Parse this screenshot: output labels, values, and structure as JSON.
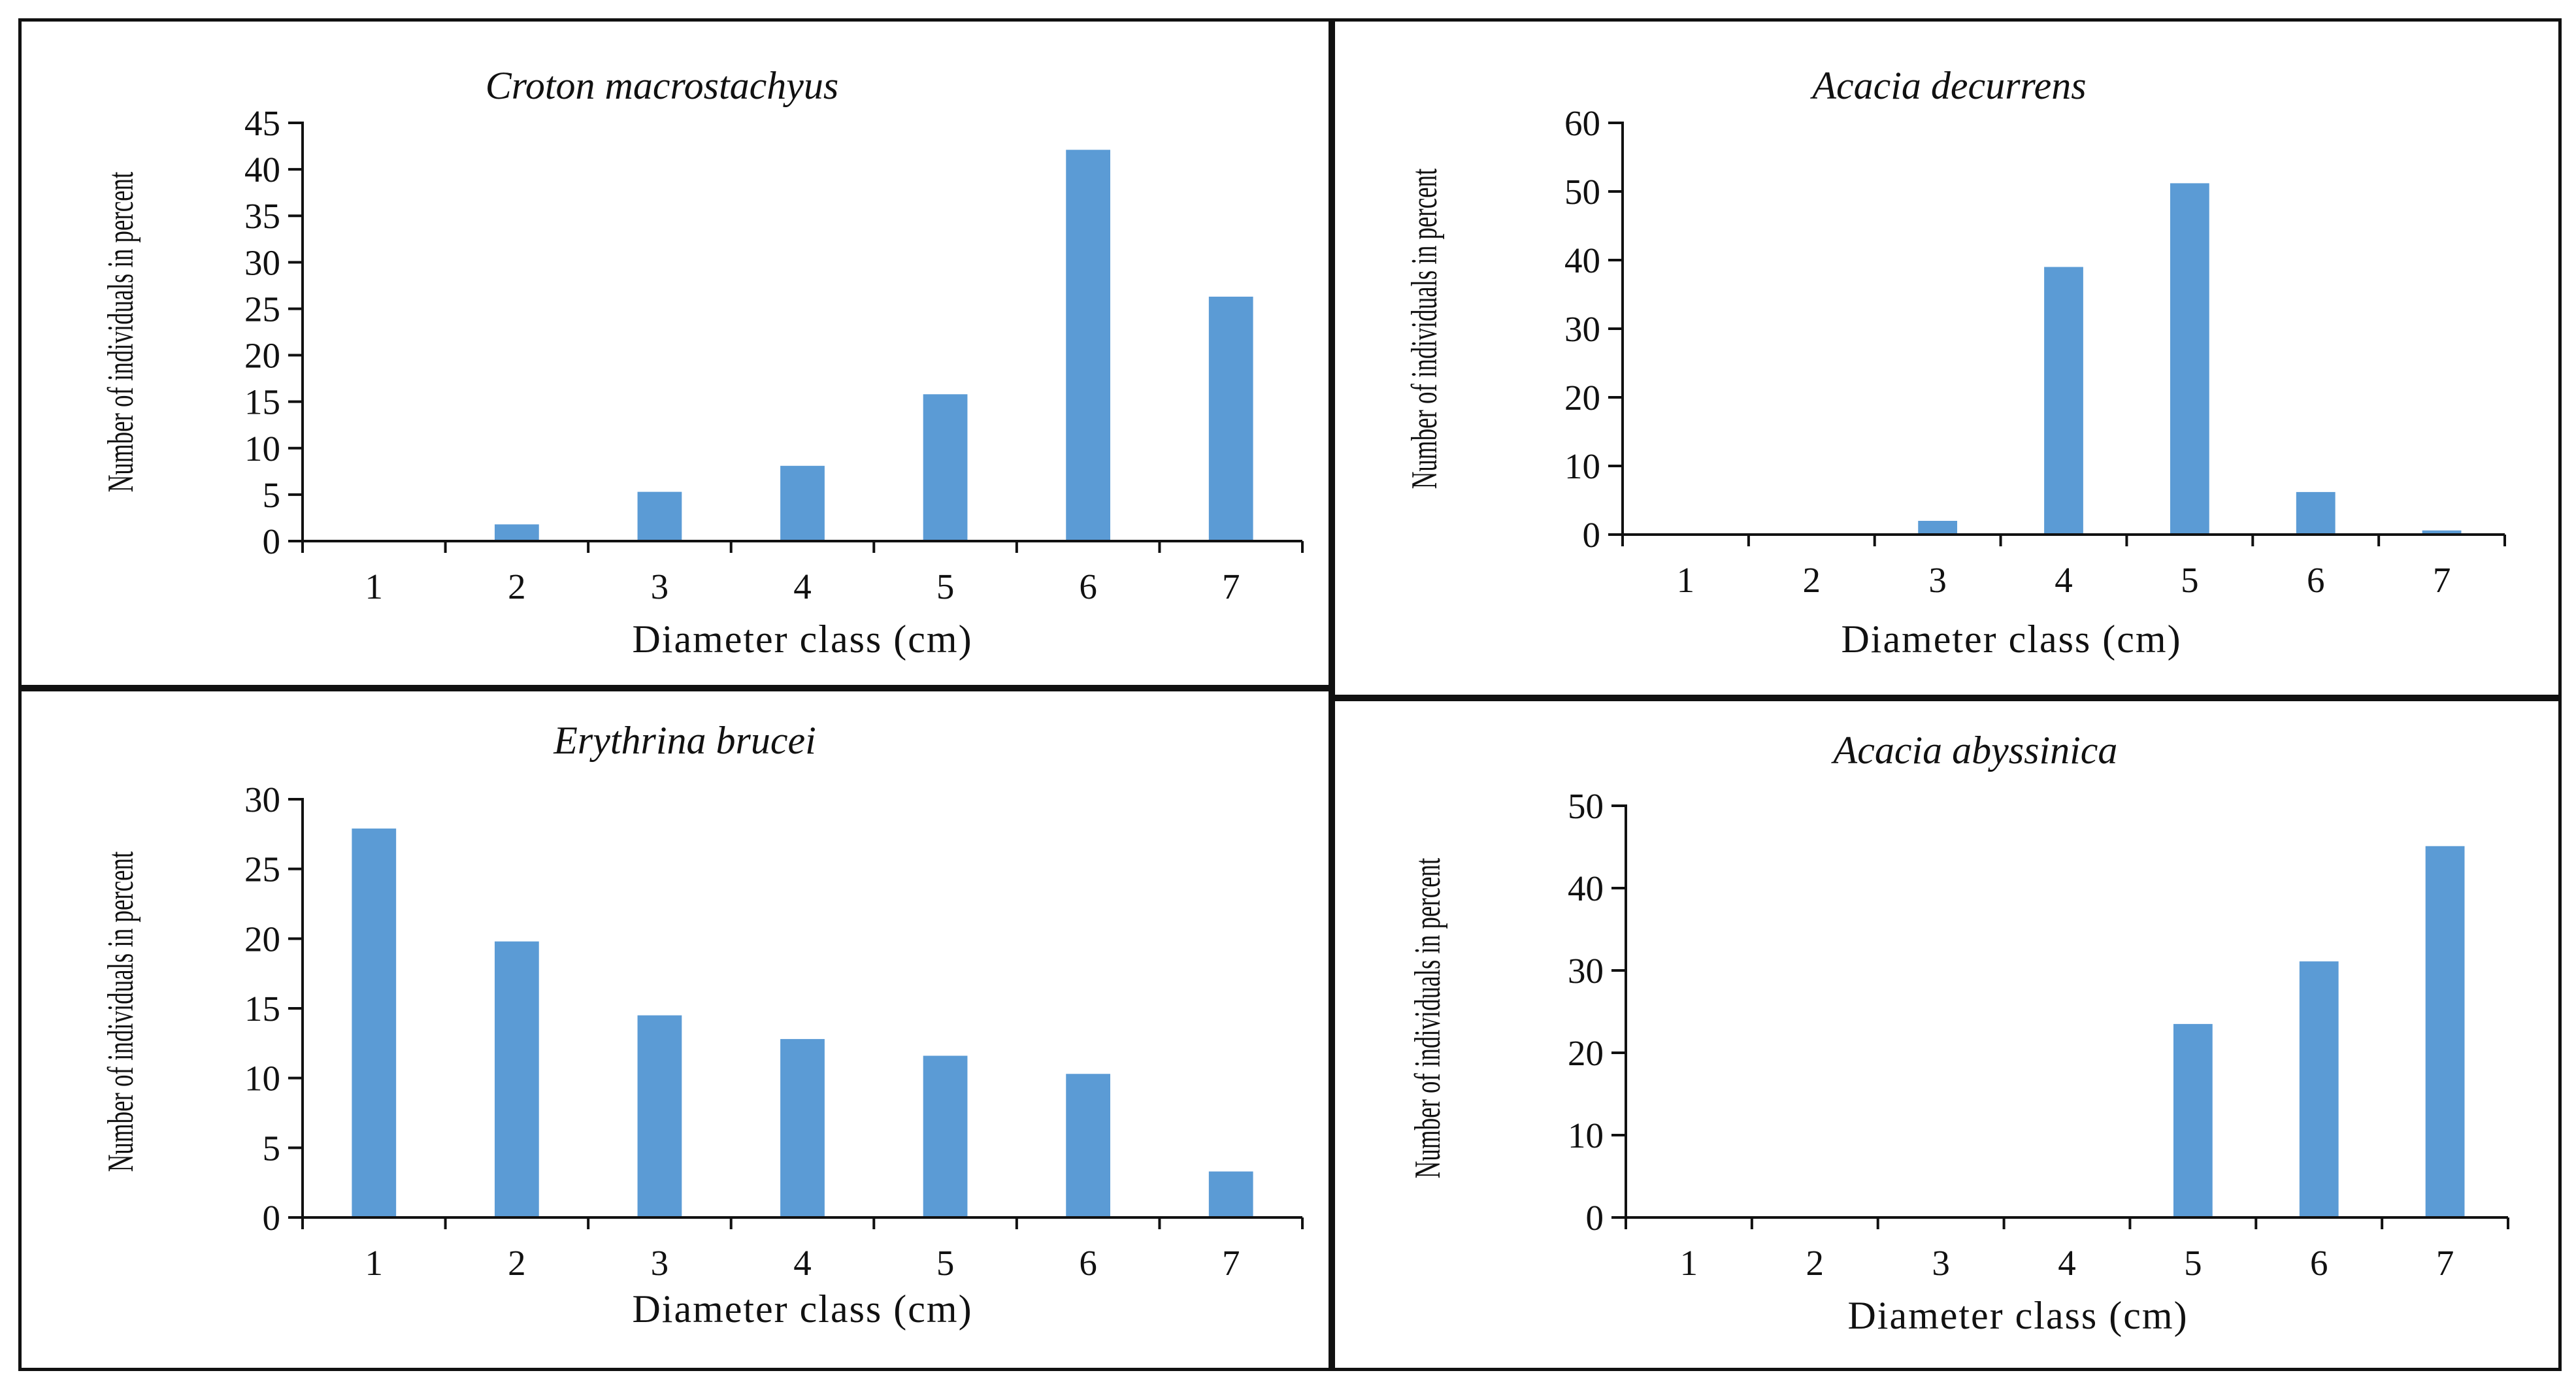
{
  "bar_color": "#5b9bd5",
  "chart_data": [
    {
      "type": "bar",
      "title": "Croton macrostachyus",
      "xlabel": "Diameter class (cm)",
      "ylabel": "Number of individuals in percent",
      "categories": [
        "1",
        "2",
        "3",
        "4",
        "5",
        "6",
        "7"
      ],
      "values": [
        0,
        1.8,
        5.3,
        8.1,
        15.8,
        42.1,
        26.3
      ],
      "ylim": [
        0,
        45
      ],
      "yticks": [
        "0",
        "5",
        "10",
        "15",
        "20",
        "25",
        "30",
        "35",
        "40",
        "45"
      ]
    },
    {
      "type": "bar",
      "title": "Acacia decurrens",
      "xlabel": "Diameter class (cm)",
      "ylabel": "Number of individuals in percent",
      "categories": [
        "1",
        "2",
        "3",
        "4",
        "5",
        "6",
        "7"
      ],
      "values": [
        0,
        0,
        2,
        39,
        51.2,
        6.2,
        0.6
      ],
      "ylim": [
        0,
        60
      ],
      "yticks": [
        "0",
        "10",
        "20",
        "30",
        "40",
        "50",
        "60"
      ]
    },
    {
      "type": "bar",
      "title": "Erythrina brucei",
      "xlabel": "Diameter class (cm)",
      "ylabel": "Number of individuals in percent",
      "categories": [
        "1",
        "2",
        "3",
        "4",
        "5",
        "6",
        "7"
      ],
      "values": [
        27.9,
        19.8,
        14.5,
        12.8,
        11.6,
        10.3,
        3.3
      ],
      "ylim": [
        0,
        30
      ],
      "yticks": [
        "0",
        "5",
        "10",
        "15",
        "20",
        "25",
        "30"
      ]
    },
    {
      "type": "bar",
      "title": "Acacia abyssinica",
      "xlabel": "Diameter class (cm)",
      "ylabel": "Number of individuals in percent",
      "categories": [
        "1",
        "2",
        "3",
        "4",
        "5",
        "6",
        "7"
      ],
      "values": [
        0,
        0,
        0,
        0,
        23.5,
        31.1,
        45.1
      ],
      "ylim": [
        0,
        50
      ],
      "yticks": [
        "0",
        "10",
        "20",
        "30",
        "40",
        "50"
      ]
    }
  ]
}
